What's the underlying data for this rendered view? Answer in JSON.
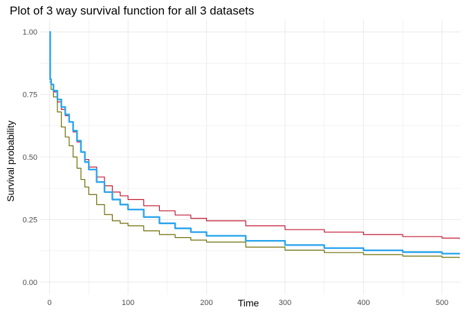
{
  "chart_data": {
    "type": "line",
    "title": "Plot of 3 way survival function for all 3 datasets",
    "xlabel": "Time",
    "ylabel": "Survival probability",
    "xlim": [
      -12,
      524
    ],
    "ylim": [
      -0.05,
      1.05
    ],
    "x_ticks": [
      0,
      100,
      200,
      300,
      400,
      500
    ],
    "x_tick_labels": [
      "0",
      "100",
      "200",
      "300",
      "400",
      "500"
    ],
    "y_ticks": [
      0,
      0.25,
      0.5,
      0.75,
      1.0
    ],
    "y_tick_labels": [
      "0.00",
      "0.25",
      "0.50",
      "0.75",
      "1.00"
    ],
    "grid": true,
    "legend": "none",
    "colors": {
      "red_series": "#c0142f",
      "blue_series": "#2aa4ec",
      "olive_series": "#6b6b00",
      "grid": "#ebebeb",
      "tick_text": "#4d4d4d"
    },
    "series": [
      {
        "color": "#c0142f",
        "width": 1.2,
        "x": [
          0,
          2,
          5,
          10,
          15,
          20,
          25,
          30,
          35,
          40,
          45,
          50,
          60,
          70,
          80,
          90,
          100,
          120,
          140,
          160,
          180,
          200,
          250,
          300,
          350,
          400,
          450,
          500,
          522
        ],
        "y": [
          0.81,
          0.79,
          0.76,
          0.72,
          0.69,
          0.665,
          0.64,
          0.6,
          0.56,
          0.52,
          0.49,
          0.46,
          0.42,
          0.385,
          0.36,
          0.345,
          0.33,
          0.305,
          0.285,
          0.268,
          0.255,
          0.245,
          0.225,
          0.21,
          0.2,
          0.19,
          0.182,
          0.176,
          0.172
        ]
      },
      {
        "color": "#6b6b00",
        "width": 1.2,
        "x": [
          0,
          2,
          5,
          10,
          15,
          20,
          25,
          30,
          35,
          40,
          45,
          50,
          60,
          70,
          80,
          90,
          100,
          120,
          140,
          160,
          180,
          200,
          250,
          300,
          350,
          400,
          450,
          500,
          522
        ],
        "y": [
          0.8,
          0.77,
          0.74,
          0.68,
          0.62,
          0.58,
          0.545,
          0.5,
          0.455,
          0.41,
          0.38,
          0.35,
          0.31,
          0.27,
          0.245,
          0.235,
          0.225,
          0.205,
          0.19,
          0.178,
          0.168,
          0.16,
          0.14,
          0.128,
          0.118,
          0.11,
          0.104,
          0.099,
          0.096
        ]
      },
      {
        "color": "#2aa4ec",
        "width": 2.4,
        "x": [
          0,
          0.8,
          2,
          5,
          10,
          15,
          20,
          25,
          30,
          35,
          40,
          45,
          50,
          60,
          70,
          80,
          90,
          100,
          120,
          140,
          160,
          180,
          200,
          250,
          300,
          350,
          400,
          450,
          500,
          522
        ],
        "y": [
          1.0,
          0.81,
          0.79,
          0.765,
          0.73,
          0.7,
          0.67,
          0.64,
          0.605,
          0.565,
          0.52,
          0.48,
          0.45,
          0.4,
          0.36,
          0.33,
          0.31,
          0.29,
          0.26,
          0.235,
          0.215,
          0.2,
          0.185,
          0.165,
          0.148,
          0.136,
          0.127,
          0.12,
          0.114,
          0.111
        ]
      }
    ]
  }
}
